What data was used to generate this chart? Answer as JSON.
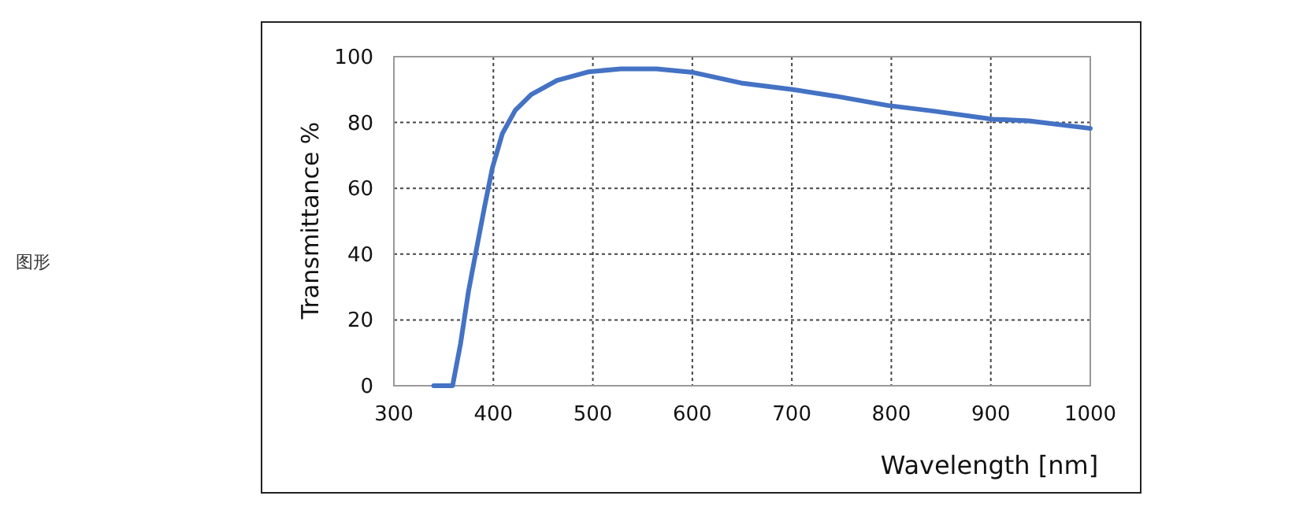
{
  "chart_data": {
    "type": "line",
    "xlabel": "Wavelength [nm]",
    "ylabel": "Transmittance %",
    "annotations": [
      "图形"
    ],
    "x": [
      340,
      359,
      367,
      375,
      383,
      391,
      399,
      409,
      422,
      438,
      464,
      496,
      528,
      564,
      601,
      649,
      701,
      744,
      796,
      844,
      902,
      938,
      1000
    ],
    "series": [
      {
        "color": "#4472c4",
        "values": [
          0,
          0,
          12.8,
          28.7,
          41.5,
          54.2,
          66.2,
          76.6,
          83.7,
          88.5,
          92.8,
          95.4,
          96.3,
          96.3,
          95.2,
          92,
          90,
          88,
          85.2,
          83.4,
          81,
          80.5,
          78.2
        ]
      }
    ],
    "xlim": [
      300,
      1000
    ],
    "ylim": [
      0,
      100
    ],
    "xticks": [
      300,
      400,
      500,
      600,
      700,
      800,
      900,
      1000
    ],
    "yticks": [
      0,
      20,
      40,
      60,
      80,
      100
    ],
    "grid": true,
    "line_style": "solid"
  }
}
